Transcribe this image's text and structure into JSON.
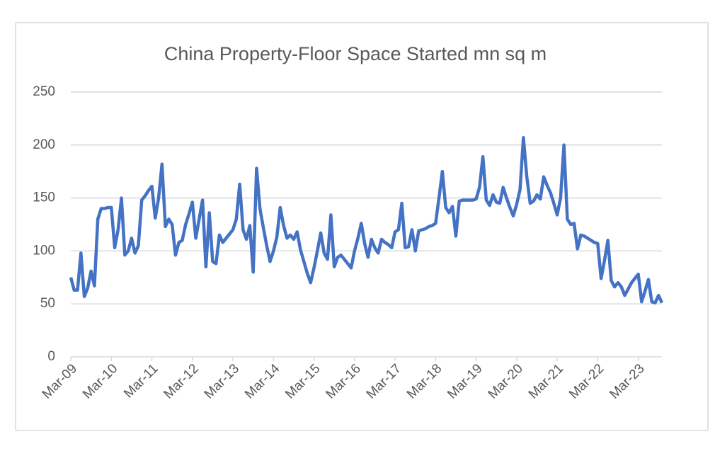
{
  "chart_data": {
    "type": "line",
    "title": "China Property-Floor Space Started mn sq m",
    "categories": [
      "Mar-09",
      null,
      null,
      null,
      null,
      null,
      null,
      null,
      null,
      null,
      null,
      null,
      "Mar-10",
      null,
      null,
      null,
      null,
      null,
      null,
      null,
      null,
      null,
      null,
      null,
      "Mar-11",
      null,
      null,
      null,
      null,
      null,
      null,
      null,
      null,
      null,
      null,
      null,
      "Mar-12",
      null,
      null,
      null,
      null,
      null,
      null,
      null,
      null,
      null,
      null,
      null,
      "Mar-13",
      null,
      null,
      null,
      null,
      null,
      null,
      null,
      null,
      null,
      null,
      null,
      "Mar-14",
      null,
      null,
      null,
      null,
      null,
      null,
      null,
      null,
      null,
      null,
      null,
      "Mar-15",
      null,
      null,
      null,
      null,
      null,
      null,
      null,
      null,
      null,
      null,
      null,
      "Mar-16",
      null,
      null,
      null,
      null,
      null,
      null,
      null,
      null,
      null,
      null,
      null,
      "Mar-17",
      null,
      null,
      null,
      null,
      null,
      null,
      null,
      null,
      null,
      null,
      null,
      "Mar-18",
      null,
      null,
      null,
      null,
      null,
      null,
      null,
      null,
      null,
      null,
      null,
      "Mar-19",
      null,
      null,
      null,
      null,
      null,
      null,
      null,
      null,
      null,
      null,
      null,
      "Mar-20",
      null,
      null,
      null,
      null,
      null,
      null,
      null,
      null,
      null,
      null,
      null,
      "Mar-21",
      null,
      null,
      null,
      null,
      null,
      null,
      null,
      null,
      null,
      null,
      null,
      "Mar-22",
      null,
      null,
      null,
      null,
      null,
      null,
      null,
      null,
      null,
      null,
      null,
      "Mar-23",
      null,
      null,
      null,
      null,
      null,
      null,
      null
    ],
    "series": [
      {
        "color": "#4472c4",
        "values": [
          75,
          63,
          63,
          98,
          57,
          65,
          81,
          67,
          130,
          140,
          140,
          141,
          141,
          103,
          120,
          150,
          96,
          100,
          112,
          98,
          105,
          148,
          152,
          157,
          161,
          131,
          150,
          182,
          123,
          130,
          125,
          96,
          108,
          110,
          125,
          135,
          146,
          112,
          130,
          148,
          85,
          136,
          90,
          88,
          115,
          108,
          112,
          116,
          120,
          130,
          163,
          120,
          111,
          124,
          80,
          178,
          140,
          122,
          105,
          90,
          100,
          113,
          141,
          124,
          112,
          115,
          111,
          118,
          101,
          90,
          79,
          70,
          84,
          100,
          117,
          98,
          92,
          134,
          85,
          94,
          96,
          92,
          88,
          84,
          100,
          112,
          126,
          107,
          94,
          111,
          103,
          98,
          111,
          108,
          106,
          103,
          118,
          120,
          145,
          103,
          104,
          120,
          100,
          119,
          120,
          121,
          123,
          124,
          126,
          150,
          175,
          141,
          136,
          142,
          114,
          147,
          148,
          148,
          148,
          148,
          149,
          160,
          189,
          148,
          143,
          153,
          146,
          145,
          160,
          150,
          141,
          133,
          144,
          158,
          207,
          170,
          145,
          147,
          153,
          149,
          170,
          162,
          155,
          145,
          134,
          150,
          200,
          130,
          125,
          126,
          102,
          115,
          114,
          112,
          110,
          108,
          107,
          74,
          91,
          110,
          72,
          66,
          70,
          66,
          58,
          64,
          70,
          74,
          78,
          52,
          62,
          73,
          52,
          51,
          58,
          51
        ]
      }
    ],
    "ylim": [
      0,
      250
    ],
    "yticks": [
      0,
      50,
      100,
      150,
      200,
      250
    ],
    "grid": true
  }
}
